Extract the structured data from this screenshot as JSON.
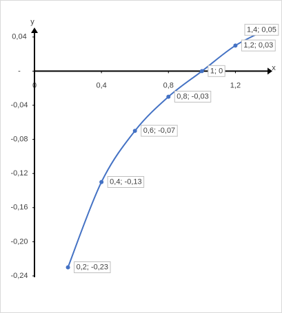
{
  "chart_data": {
    "type": "scatter",
    "x_label": "x",
    "y_label": "y",
    "x": [
      0.2,
      0.4,
      0.6,
      0.8,
      1,
      1.2,
      1.4
    ],
    "values": [
      -0.23,
      -0.13,
      -0.07,
      -0.03,
      0,
      0.03,
      0.05
    ],
    "value_labels": [
      "0,2; -0,23",
      "0,4; -0,13",
      "0,6; -0,07",
      "0,8; -0,03",
      "1; 0",
      "1,2;  0,03",
      "1,4;  0,05"
    ],
    "color": "#4472c4",
    "xlim": [
      0,
      1.4
    ],
    "xticks": [
      0,
      {
        "value": 0.4,
        "label": "0,4"
      },
      {
        "value": 0.8,
        "label": "0,8"
      },
      {
        "value": 1.2,
        "label": "1,2"
      }
    ],
    "ylim": [
      -0.24,
      0.06
    ],
    "yticks": [
      {
        "value": 0.04,
        "label": "0,04"
      },
      {
        "value": 0,
        "label": "-"
      },
      {
        "value": -0.04,
        "label": "-0,04"
      },
      {
        "value": -0.08,
        "label": "-0,08"
      },
      {
        "value": -0.12,
        "label": "-0,12"
      },
      {
        "value": -0.16,
        "label": "-0,16"
      },
      {
        "value": -0.2,
        "label": "-0,20"
      },
      {
        "value": -0.24,
        "label": "-0,24"
      }
    ]
  }
}
